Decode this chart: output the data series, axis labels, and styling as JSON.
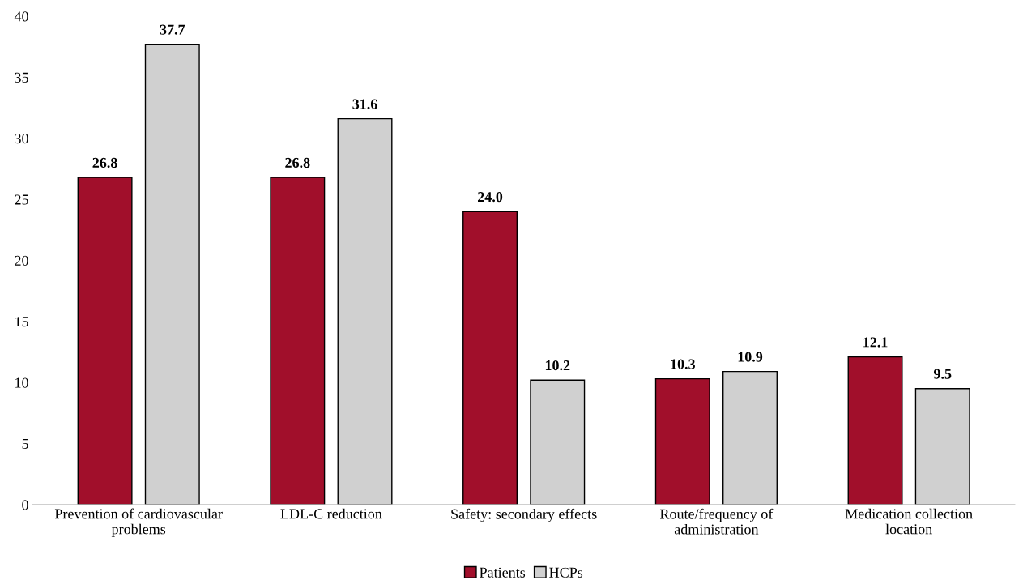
{
  "chart_data": {
    "type": "bar",
    "categories": [
      "Prevention of cardiovascular\nproblems",
      "LDL-C reduction",
      "Safety: secondary effects",
      "Route/frequency of\nadministration",
      "Medication collection\nlocation"
    ],
    "series": [
      {
        "name": "Patients",
        "color": "#a10f2b",
        "values": [
          26.8,
          26.8,
          24.0,
          10.3,
          12.1
        ],
        "value_labels": [
          "26.8",
          "26.8",
          "24.0",
          "10.3",
          "12.1"
        ]
      },
      {
        "name": "HCPs",
        "color": "#d0d0d0",
        "values": [
          37.7,
          31.6,
          10.2,
          10.9,
          9.5
        ],
        "value_labels": [
          "37.7",
          "31.6",
          "10.2",
          "10.9",
          "9.5"
        ]
      }
    ],
    "ylim": [
      0,
      40
    ],
    "yticks": [
      0,
      5,
      10,
      15,
      20,
      25,
      30,
      35,
      40
    ],
    "grid": false,
    "legend": "bottom"
  }
}
